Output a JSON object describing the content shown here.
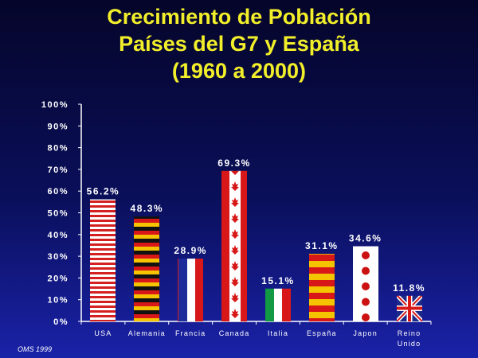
{
  "title_lines": [
    "Crecimiento de Población",
    "Países del G7 y España",
    "(1960 a 2000)"
  ],
  "source": "OMS 1999",
  "colors": {
    "title": "#f2ef2a",
    "text": "#ffffff",
    "axis": "#ffffff"
  },
  "chart_data": {
    "type": "bar",
    "title": "Crecimiento de Población Países del G7 y España (1960 a 2000)",
    "xlabel": "",
    "ylabel": "",
    "ylim": [
      0,
      100
    ],
    "yticks": [
      "0%",
      "10%",
      "20%",
      "30%",
      "40%",
      "50%",
      "60%",
      "70%",
      "80%",
      "90%",
      "100%"
    ],
    "grid": false,
    "categories": [
      "USA",
      "Alemania",
      "Francia",
      "Canada",
      "Italia",
      "España",
      "Japon",
      "Reino Unido"
    ],
    "category_lines": [
      [
        "USA"
      ],
      [
        "Alemania"
      ],
      [
        "Francia"
      ],
      [
        "Canada"
      ],
      [
        "Italia"
      ],
      [
        "España"
      ],
      [
        "Japon"
      ],
      [
        "Reino",
        "Unido"
      ]
    ],
    "values": [
      56.2,
      48.3,
      28.9,
      69.3,
      15.1,
      31.1,
      34.6,
      11.8
    ],
    "data_labels": [
      "56.2%",
      "48.3%",
      "28.9%",
      "69.3%",
      "15.1%",
      "31.1%",
      "34.6%",
      "11.8%"
    ],
    "bar_fills": [
      "usa-flag",
      "germany-flag",
      "france-flag",
      "canada-flag",
      "italy-flag",
      "spain-flag",
      "japan-flag",
      "uk-flag"
    ]
  }
}
